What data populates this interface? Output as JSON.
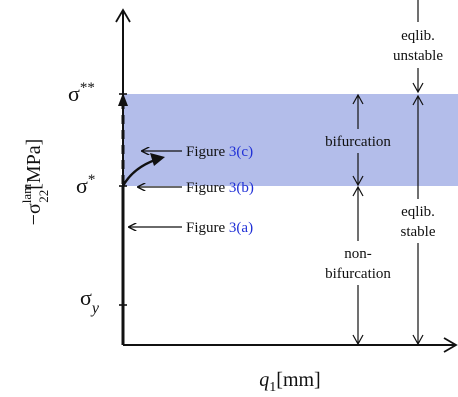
{
  "axes": {
    "ylabel_prefix": "−σ",
    "ylabel_sup": "lam",
    "ylabel_sub": "22",
    "ylabel_unit": "[MPa]",
    "xlabel_var": "q",
    "xlabel_sub": "1",
    "xlabel_unit": "[mm]"
  },
  "ticks": {
    "sigma_ss_base": "σ",
    "sigma_ss_sup": "**",
    "sigma_s_base": "σ",
    "sigma_s_sup": "*",
    "sigma_y_base": "σ",
    "sigma_y_sub": "y"
  },
  "figure_refs": {
    "prefix": "Figure ",
    "c": "3(c)",
    "b": "3(b)",
    "a": "3(a)"
  },
  "regions": {
    "bifurcation": "bifurcation",
    "non_bifurcation_line1": "non-",
    "non_bifurcation_line2": "bifurcation",
    "eqlib_unstable_line1": "eqlib.",
    "eqlib_unstable_line2": "unstable",
    "eqlib_stable_line1": "eqlib.",
    "eqlib_stable_line2": "stable"
  },
  "colors": {
    "band": "#b3bdea",
    "link": "#1f2fd6",
    "ink": "#111111"
  }
}
